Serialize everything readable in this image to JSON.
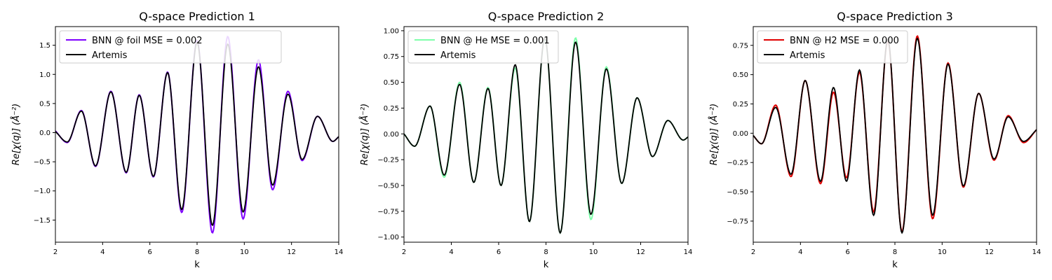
{
  "chart_data": [
    {
      "type": "line",
      "title": "Q-space Prediction 1",
      "xlabel": "k",
      "ylabel": "Re[χ(q)] (Å⁻²)",
      "xlim": [
        2,
        14
      ],
      "ylim": [
        -1.88,
        1.82
      ],
      "xticks": [
        2,
        4,
        6,
        8,
        10,
        12,
        14
      ],
      "yticks": [
        -1.5,
        -1.0,
        -0.5,
        0.0,
        0.5,
        1.0,
        1.5
      ],
      "ytick_labels": [
        "−1.5",
        "−1.0",
        "−0.5",
        "0.0",
        "0.5",
        "1.0",
        "1.5"
      ],
      "grid": false,
      "legend_position": "upper left",
      "series": [
        {
          "name": "BNN @ foil MSE = 0.002",
          "color": "#7f00ff",
          "x": [
            2.0,
            2.5,
            3.1,
            3.7,
            4.35,
            5.0,
            5.55,
            6.15,
            6.75,
            7.35,
            8.0,
            8.65,
            9.3,
            9.95,
            10.6,
            11.2,
            11.85,
            12.45,
            13.1,
            13.75,
            14.0
          ],
          "y": [
            0.03,
            -0.17,
            0.38,
            -0.58,
            0.71,
            -0.69,
            0.65,
            -0.76,
            1.04,
            -1.37,
            1.58,
            -1.72,
            1.65,
            -1.48,
            1.25,
            -0.98,
            0.71,
            -0.48,
            0.28,
            -0.15,
            -0.07
          ]
        },
        {
          "name": "Artemis",
          "color": "#000000",
          "x": [
            2.0,
            2.5,
            3.1,
            3.7,
            4.35,
            5.0,
            5.55,
            6.15,
            6.75,
            7.35,
            8.0,
            8.65,
            9.3,
            9.95,
            10.6,
            11.2,
            11.85,
            12.45,
            13.1,
            13.75,
            14.0
          ],
          "y": [
            0.02,
            -0.16,
            0.37,
            -0.57,
            0.7,
            -0.68,
            0.64,
            -0.75,
            1.03,
            -1.32,
            1.55,
            -1.59,
            1.52,
            -1.36,
            1.13,
            -0.9,
            0.66,
            -0.46,
            0.28,
            -0.15,
            -0.07
          ]
        }
      ]
    },
    {
      "type": "line",
      "title": "Q-space Prediction 2",
      "xlabel": "k",
      "ylabel": "Re[χ(q)] (Å⁻²)",
      "xlim": [
        2,
        14
      ],
      "ylim": [
        -1.05,
        1.04
      ],
      "xticks": [
        2,
        4,
        6,
        8,
        10,
        12,
        14
      ],
      "yticks": [
        -1.0,
        -0.75,
        -0.5,
        -0.25,
        0.0,
        0.25,
        0.5,
        0.75,
        1.0
      ],
      "ytick_labels": [
        "−1.00",
        "−0.75",
        "−0.50",
        "−0.25",
        "0.00",
        "0.25",
        "0.50",
        "0.75",
        "1.00"
      ],
      "grid": false,
      "legend_position": "upper left",
      "series": [
        {
          "name": "BNN @ He MSE = 0.001",
          "color": "#7fffaa",
          "x": [
            2.0,
            2.45,
            3.1,
            3.7,
            4.35,
            4.95,
            5.55,
            6.1,
            6.7,
            7.3,
            7.95,
            8.6,
            9.25,
            9.9,
            10.55,
            11.2,
            11.85,
            12.5,
            13.15,
            13.8,
            14.0
          ],
          "y": [
            0.0,
            -0.12,
            0.27,
            -0.42,
            0.5,
            -0.47,
            0.45,
            -0.5,
            0.64,
            -0.85,
            0.92,
            -0.96,
            0.93,
            -0.83,
            0.65,
            -0.48,
            0.35,
            -0.22,
            0.13,
            -0.06,
            -0.03
          ]
        },
        {
          "name": "Artemis",
          "color": "#000000",
          "x": [
            2.0,
            2.45,
            3.1,
            3.7,
            4.35,
            4.95,
            5.55,
            6.1,
            6.7,
            7.3,
            7.95,
            8.6,
            9.25,
            9.9,
            10.55,
            11.2,
            11.85,
            12.5,
            13.15,
            13.8,
            14.0
          ],
          "y": [
            0.0,
            -0.12,
            0.27,
            -0.4,
            0.48,
            -0.47,
            0.44,
            -0.5,
            0.67,
            -0.85,
            0.93,
            -0.96,
            0.89,
            -0.78,
            0.63,
            -0.48,
            0.35,
            -0.22,
            0.13,
            -0.06,
            -0.03
          ]
        }
      ]
    },
    {
      "type": "line",
      "title": "Q-space Prediction 3",
      "xlabel": "k",
      "ylabel": "Re[χ(q)] (Å⁻²)",
      "xlim": [
        2,
        14
      ],
      "ylim": [
        -0.93,
        0.91
      ],
      "xticks": [
        2,
        4,
        6,
        8,
        10,
        12,
        14
      ],
      "yticks": [
        -0.75,
        -0.5,
        -0.25,
        0.0,
        0.25,
        0.5,
        0.75
      ],
      "ytick_labels": [
        "−0.75",
        "−0.50",
        "−0.25",
        "0.00",
        "0.25",
        "0.50",
        "0.75"
      ],
      "grid": false,
      "legend_position": "upper left",
      "series": [
        {
          "name": "BNN @ H2 MSE = 0.000",
          "color": "#e00000",
          "x": [
            2.0,
            2.35,
            2.95,
            3.6,
            4.2,
            4.85,
            5.4,
            5.95,
            6.5,
            7.1,
            7.7,
            8.3,
            8.95,
            9.6,
            10.25,
            10.9,
            11.55,
            12.2,
            12.8,
            13.45,
            14.0
          ],
          "y": [
            -0.02,
            -0.09,
            0.24,
            -0.37,
            0.45,
            -0.43,
            0.35,
            -0.38,
            0.52,
            -0.67,
            0.79,
            -0.84,
            0.83,
            -0.73,
            0.6,
            -0.46,
            0.34,
            -0.23,
            0.15,
            -0.08,
            0.03
          ]
        },
        {
          "name": "Artemis",
          "color": "#000000",
          "x": [
            2.0,
            2.35,
            2.95,
            3.6,
            4.2,
            4.85,
            5.4,
            5.95,
            6.5,
            7.1,
            7.7,
            8.3,
            8.95,
            9.6,
            10.25,
            10.9,
            11.55,
            12.2,
            12.8,
            13.45,
            14.0
          ],
          "y": [
            -0.02,
            -0.09,
            0.22,
            -0.35,
            0.45,
            -0.41,
            0.39,
            -0.41,
            0.54,
            -0.7,
            0.8,
            -0.85,
            0.81,
            -0.7,
            0.59,
            -0.45,
            0.34,
            -0.22,
            0.14,
            -0.07,
            0.03
          ]
        }
      ]
    }
  ]
}
